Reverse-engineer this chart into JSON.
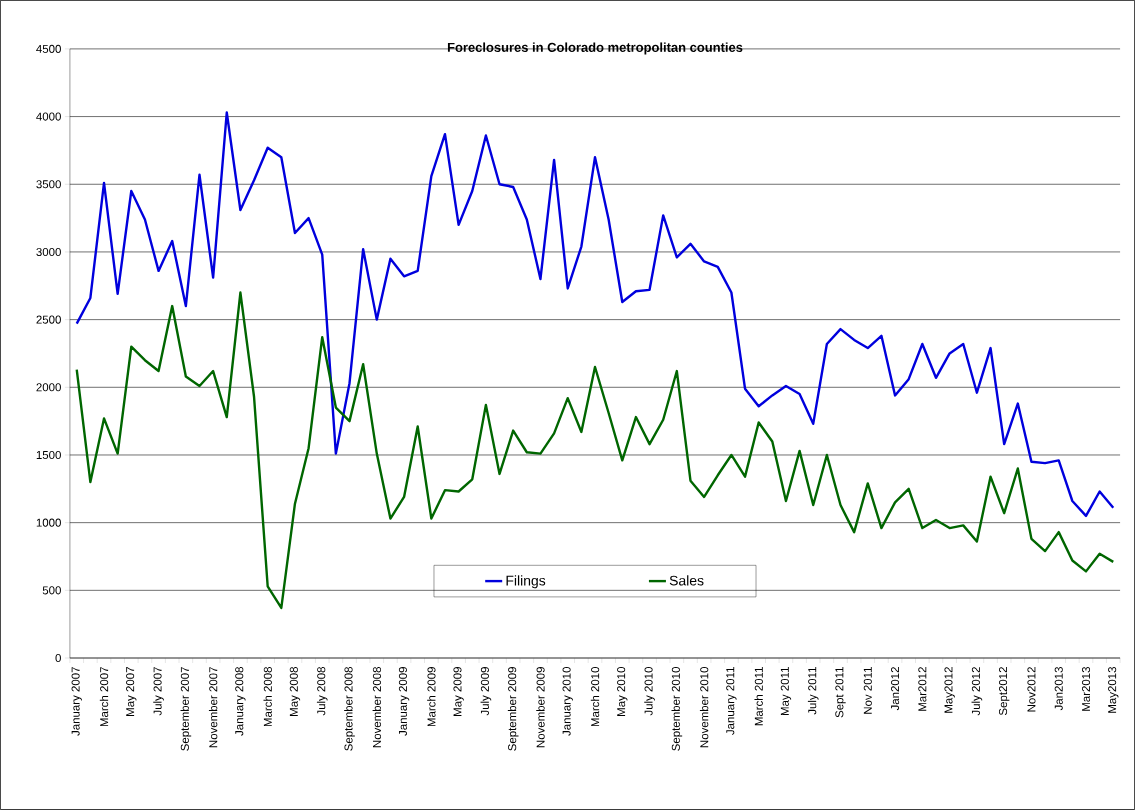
{
  "chart_data": {
    "type": "line",
    "title": "Foreclosures in Colorado metropolitan counties",
    "categories": [
      "January 2007",
      null,
      "March 2007",
      null,
      "May 2007",
      null,
      "July 2007",
      null,
      "September 2007",
      null,
      "November 2007",
      null,
      "January 2008",
      null,
      "March 2008",
      null,
      "May 2008",
      null,
      "July 2008",
      null,
      "September 2008",
      null,
      "November 2008",
      null,
      "January 2009",
      null,
      "March 2009",
      null,
      "May 2009",
      null,
      "July 2009",
      null,
      "September 2009",
      null,
      "November 2009",
      null,
      "January 2010",
      null,
      "March 2010",
      null,
      "May 2010",
      null,
      "July 2010",
      null,
      "September 2010",
      null,
      "November 2010",
      null,
      "January 2011",
      null,
      "March 2011",
      null,
      "May 2011",
      null,
      "July 2011",
      null,
      "Sept 2011",
      null,
      "Nov 2011",
      null,
      "Jan2012",
      null,
      "Mar2012",
      null,
      "May2012",
      null,
      "July 2012",
      null,
      "Sept2012",
      null,
      "Nov2012",
      null,
      "Jan2013",
      null,
      "Mar2013",
      null,
      "May2013"
    ],
    "series": [
      {
        "name": "Filings",
        "color": "#0000dd",
        "values": [
          2470,
          2660,
          3510,
          2690,
          3450,
          3240,
          2860,
          3080,
          2600,
          3570,
          2810,
          4030,
          3310,
          3530,
          3770,
          3700,
          3140,
          3250,
          2980,
          1510,
          2030,
          3020,
          2500,
          2950,
          2820,
          2860,
          3560,
          3870,
          3200,
          3450,
          3860,
          3500,
          3480,
          3240,
          2800,
          3680,
          2730,
          3040,
          3700,
          3240,
          2630,
          2710,
          2720,
          3270,
          2960,
          3060,
          2930,
          2890,
          2700,
          1990,
          1860,
          1940,
          2010,
          1950,
          1730,
          2320,
          2430,
          2350,
          2290,
          2380,
          1940,
          2060,
          2320,
          2070,
          2250,
          2320,
          1960,
          2290,
          1580,
          1880,
          1450,
          1440,
          1460,
          1160,
          1050,
          1230,
          1110
        ]
      },
      {
        "name": "Sales",
        "color": "#006600",
        "values": [
          2130,
          1300,
          1770,
          1510,
          2300,
          2200,
          2120,
          2600,
          2080,
          2010,
          2120,
          1780,
          2700,
          1930,
          530,
          370,
          1140,
          1550,
          2370,
          1850,
          1750,
          2170,
          1510,
          1030,
          1190,
          1710,
          1030,
          1240,
          1230,
          1320,
          1870,
          1360,
          1680,
          1520,
          1510,
          1660,
          1920,
          1670,
          2150,
          1810,
          1460,
          1780,
          1580,
          1760,
          2120,
          1310,
          1190,
          1350,
          1500,
          1340,
          1740,
          1600,
          1160,
          1530,
          1130,
          1500,
          1130,
          930,
          1290,
          960,
          1150,
          1250,
          960,
          1020,
          960,
          980,
          860,
          1340,
          1070,
          1400,
          880,
          790,
          930,
          720,
          640,
          770,
          710
        ]
      }
    ],
    "ylim": [
      0,
      4500
    ],
    "yticks": [
      0,
      500,
      1000,
      1500,
      2000,
      2500,
      3000,
      3500,
      4000,
      4500
    ],
    "grid": "y",
    "legend": "bottom",
    "marker": "none",
    "line_style": "solid"
  }
}
